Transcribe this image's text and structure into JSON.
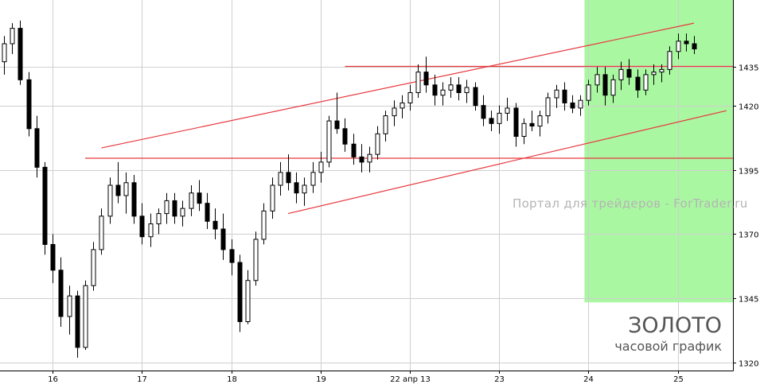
{
  "chart_data": {
    "type": "candlestick",
    "title": "ЗОЛОТО",
    "subtitle": "часовой график",
    "watermark": "Портал для трейдеров - ForTrader.ru",
    "y_ticks": [
      1320,
      1345,
      1370,
      1395,
      1420,
      1435
    ],
    "ylim": [
      1317,
      1461
    ],
    "x_labels": [
      {
        "label": "16",
        "bar": 6
      },
      {
        "label": "17",
        "bar": 17
      },
      {
        "label": "18",
        "bar": 28
      },
      {
        "label": "19",
        "bar": 39
      },
      {
        "label": "22 апр 13",
        "bar": 50
      },
      {
        "label": "23",
        "bar": 61
      },
      {
        "label": "24",
        "bar": 72
      },
      {
        "label": "25",
        "bar": 83
      }
    ],
    "n_bars": 90,
    "grid": true,
    "highlight": {
      "from_bar": 72,
      "to_bar": 89,
      "ymin": 1343.5,
      "color": "#aaf7a2"
    },
    "colors": {
      "line": "#e8383e",
      "candle": "#000000",
      "grid": "#cfcfcf",
      "bull_body": "#ffffff"
    },
    "lines": [
      {
        "name": "channel-upper",
        "x0": 12,
        "y0": 1403.5,
        "x1": 85,
        "y1": 1452
      },
      {
        "name": "channel-lower",
        "x0": 35,
        "y0": 1378,
        "x1": 89,
        "y1": 1418
      },
      {
        "name": "resistance",
        "x0": 42,
        "y0": 1435.2,
        "x1": 90,
        "y1": 1435.2
      },
      {
        "name": "support",
        "x0": 10,
        "y0": 1399.5,
        "x1": 90,
        "y1": 1399.5
      }
    ],
    "candles": [
      [
        1437,
        1447,
        1432,
        1444
      ],
      [
        1444,
        1452,
        1440,
        1450
      ],
      [
        1450,
        1453,
        1428,
        1430
      ],
      [
        1430,
        1433,
        1408,
        1411
      ],
      [
        1411,
        1416,
        1392,
        1396
      ],
      [
        1396,
        1398,
        1362,
        1366
      ],
      [
        1366,
        1370,
        1351,
        1356
      ],
      [
        1356,
        1361,
        1334,
        1338
      ],
      [
        1338,
        1350,
        1331,
        1346
      ],
      [
        1346,
        1348,
        1322,
        1326
      ],
      [
        1326,
        1352,
        1325,
        1350
      ],
      [
        1350,
        1367,
        1348,
        1364
      ],
      [
        1364,
        1380,
        1362,
        1377
      ],
      [
        1377,
        1392,
        1374,
        1389
      ],
      [
        1389,
        1398,
        1382,
        1385
      ],
      [
        1385,
        1394,
        1378,
        1390
      ],
      [
        1390,
        1393,
        1374,
        1377
      ],
      [
        1377,
        1382,
        1366,
        1369
      ],
      [
        1369,
        1378,
        1365,
        1374
      ],
      [
        1374,
        1380,
        1370,
        1378
      ],
      [
        1378,
        1386,
        1374,
        1383
      ],
      [
        1383,
        1386,
        1374,
        1377
      ],
      [
        1377,
        1383,
        1373,
        1380
      ],
      [
        1380,
        1389,
        1377,
        1386
      ],
      [
        1386,
        1391,
        1379,
        1382
      ],
      [
        1382,
        1386,
        1372,
        1375
      ],
      [
        1375,
        1380,
        1368,
        1372
      ],
      [
        1372,
        1378,
        1360,
        1364
      ],
      [
        1364,
        1368,
        1354,
        1359
      ],
      [
        1359,
        1362,
        1332,
        1336
      ],
      [
        1336,
        1356,
        1335,
        1352
      ],
      [
        1352,
        1371,
        1350,
        1368
      ],
      [
        1368,
        1382,
        1366,
        1379
      ],
      [
        1379,
        1392,
        1376,
        1389
      ],
      [
        1389,
        1398,
        1385,
        1394
      ],
      [
        1394,
        1401,
        1387,
        1390
      ],
      [
        1390,
        1394,
        1382,
        1386
      ],
      [
        1386,
        1392,
        1381,
        1389
      ],
      [
        1389,
        1398,
        1386,
        1394
      ],
      [
        1394,
        1402,
        1390,
        1398
      ],
      [
        1398,
        1416,
        1396,
        1414
      ],
      [
        1414,
        1425,
        1409,
        1411
      ],
      [
        1411,
        1415,
        1402,
        1405
      ],
      [
        1405,
        1409,
        1397,
        1400
      ],
      [
        1400,
        1405,
        1394,
        1398
      ],
      [
        1398,
        1404,
        1394,
        1401
      ],
      [
        1401,
        1412,
        1399,
        1409
      ],
      [
        1409,
        1418,
        1406,
        1416
      ],
      [
        1416,
        1422,
        1412,
        1419
      ],
      [
        1419,
        1424,
        1415,
        1421
      ],
      [
        1421,
        1428,
        1418,
        1425
      ],
      [
        1425,
        1436,
        1423,
        1433
      ],
      [
        1433,
        1439,
        1425,
        1428
      ],
      [
        1428,
        1432,
        1420,
        1424
      ],
      [
        1424,
        1429,
        1420,
        1426
      ],
      [
        1426,
        1431,
        1423,
        1428
      ],
      [
        1428,
        1431,
        1422,
        1425
      ],
      [
        1425,
        1430,
        1421,
        1427
      ],
      [
        1427,
        1429,
        1418,
        1420
      ],
      [
        1420,
        1424,
        1412,
        1415
      ],
      [
        1415,
        1418,
        1410,
        1413
      ],
      [
        1413,
        1420,
        1409,
        1417
      ],
      [
        1417,
        1423,
        1414,
        1419
      ],
      [
        1419,
        1421,
        1404,
        1408
      ],
      [
        1408,
        1415,
        1405,
        1413
      ],
      [
        1413,
        1418,
        1410,
        1412
      ],
      [
        1412,
        1418,
        1408,
        1416
      ],
      [
        1416,
        1425,
        1413,
        1423
      ],
      [
        1423,
        1428,
        1419,
        1426
      ],
      [
        1426,
        1429,
        1418,
        1421
      ],
      [
        1421,
        1424,
        1417,
        1419
      ],
      [
        1419,
        1424,
        1416,
        1422
      ],
      [
        1422,
        1430,
        1420,
        1428
      ],
      [
        1428,
        1435,
        1425,
        1432
      ],
      [
        1432,
        1435,
        1420,
        1424
      ],
      [
        1424,
        1432,
        1421,
        1430
      ],
      [
        1430,
        1437,
        1426,
        1434
      ],
      [
        1434,
        1438,
        1428,
        1431
      ],
      [
        1431,
        1434,
        1423,
        1426
      ],
      [
        1426,
        1434,
        1424,
        1432
      ],
      [
        1432,
        1436,
        1428,
        1433
      ],
      [
        1433,
        1436,
        1429,
        1434
      ],
      [
        1434,
        1443,
        1432,
        1441
      ],
      [
        1441,
        1448,
        1438,
        1445
      ],
      [
        1445,
        1448,
        1441,
        1444
      ],
      [
        1444,
        1447,
        1440,
        1442
      ]
    ]
  }
}
